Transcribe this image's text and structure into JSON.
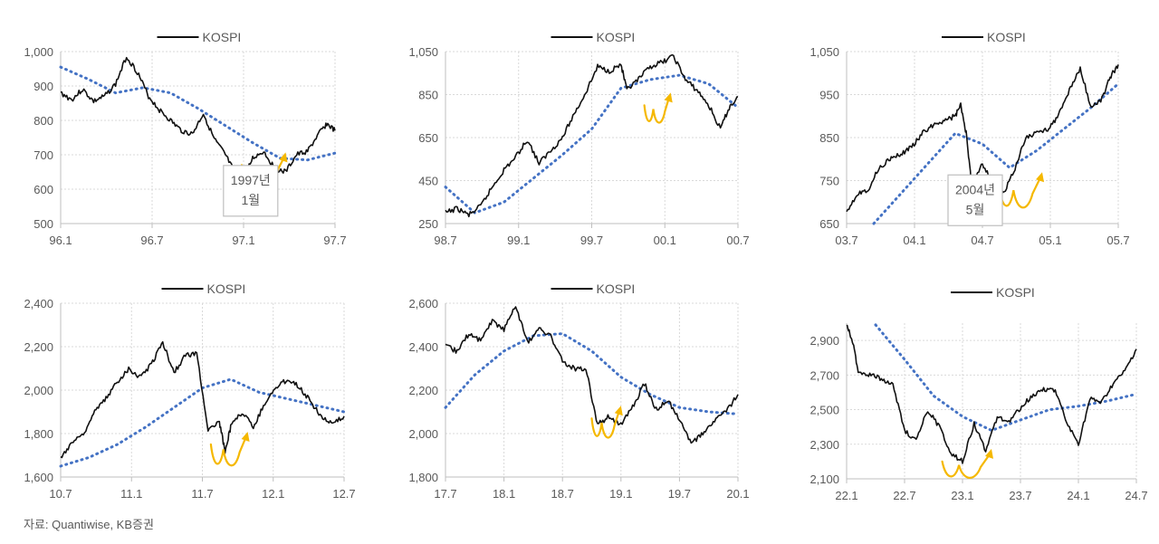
{
  "colors": {
    "price": "#111111",
    "trend": "#4472c4",
    "pattern": "#f5b800",
    "grid": "#d9d9d9",
    "axis": "#bfbfbf",
    "text": "#595959",
    "callout_border": "#bfbfbf"
  },
  "source": "자료: Quantiwise, KB증권",
  "chart_data": [
    {
      "type": "line",
      "legend": "KOSPI",
      "legend_position": "top-center",
      "grid": true,
      "ylim": [
        500,
        1000
      ],
      "yticks": [
        500,
        600,
        700,
        800,
        900,
        1000
      ],
      "ytick_labels": [
        "500",
        "600",
        "700",
        "800",
        "900",
        "1,000"
      ],
      "xticks": [
        "96.1",
        "96.7",
        "97.1",
        "97.7"
      ],
      "series": [
        {
          "name": "KOSPI",
          "style": "solid",
          "x": [
            0,
            0.04,
            0.08,
            0.12,
            0.16,
            0.2,
            0.24,
            0.28,
            0.32,
            0.36,
            0.4,
            0.44,
            0.48,
            0.52,
            0.56,
            0.6,
            0.64,
            0.66,
            0.7,
            0.74,
            0.78,
            0.82,
            0.86,
            0.9,
            0.94,
            0.97,
            1.0
          ],
          "y": [
            880,
            860,
            890,
            855,
            870,
            905,
            985,
            940,
            870,
            830,
            800,
            770,
            760,
            820,
            745,
            700,
            640,
            620,
            690,
            710,
            660,
            650,
            700,
            710,
            760,
            790,
            770
          ]
        },
        {
          "name": "",
          "style": "dotted",
          "x": [
            0,
            0.1,
            0.2,
            0.3,
            0.4,
            0.5,
            0.6,
            0.7,
            0.8,
            0.9,
            1.0
          ],
          "y": [
            955,
            920,
            880,
            895,
            880,
            835,
            785,
            735,
            690,
            685,
            705
          ]
        }
      ],
      "pattern": {
        "x_start": 0.66,
        "x_end": 0.82,
        "y_low": 610,
        "y_high": 670
      },
      "callout": {
        "lines": [
          "1997년",
          "1월"
        ],
        "x": 0.6,
        "y_center": 590
      }
    },
    {
      "type": "line",
      "legend": "KOSPI",
      "legend_position": "top-center",
      "grid": true,
      "ylim": [
        250,
        1050
      ],
      "yticks": [
        250,
        450,
        650,
        850,
        1050
      ],
      "ytick_labels": [
        "250",
        "450",
        "650",
        "850",
        "1,050"
      ],
      "xticks": [
        "98.7",
        "99.1",
        "99.7",
        "00.1",
        "00.7"
      ],
      "series": [
        {
          "name": "KOSPI",
          "style": "solid",
          "x": [
            0,
            0.04,
            0.08,
            0.12,
            0.16,
            0.2,
            0.24,
            0.28,
            0.32,
            0.36,
            0.4,
            0.44,
            0.48,
            0.52,
            0.56,
            0.6,
            0.62,
            0.66,
            0.7,
            0.74,
            0.78,
            0.82,
            0.86,
            0.9,
            0.94,
            0.97,
            1.0
          ],
          "y": [
            300,
            320,
            290,
            330,
            420,
            500,
            560,
            640,
            530,
            590,
            650,
            760,
            860,
            980,
            960,
            990,
            870,
            920,
            980,
            1000,
            1030,
            920,
            870,
            800,
            690,
            790,
            840
          ]
        },
        {
          "name": "",
          "style": "dotted",
          "x": [
            0,
            0.1,
            0.2,
            0.3,
            0.4,
            0.5,
            0.6,
            0.7,
            0.8,
            0.9,
            1.0
          ],
          "y": [
            420,
            300,
            350,
            460,
            570,
            690,
            880,
            920,
            940,
            900,
            790
          ]
        }
      ],
      "pattern": {
        "x_start": 0.68,
        "x_end": 0.77,
        "y_low": 730,
        "y_high": 800
      }
    },
    {
      "type": "line",
      "legend": "KOSPI",
      "legend_position": "top-center",
      "grid": true,
      "ylim": [
        650,
        1050
      ],
      "yticks": [
        650,
        750,
        850,
        950,
        1050
      ],
      "ytick_labels": [
        "650",
        "750",
        "850",
        "950",
        "1,050"
      ],
      "xticks": [
        "03.7",
        "04.1",
        "04.7",
        "05.1",
        "05.7"
      ],
      "series": [
        {
          "name": "KOSPI",
          "style": "solid",
          "x": [
            0,
            0.04,
            0.08,
            0.12,
            0.16,
            0.2,
            0.24,
            0.28,
            0.32,
            0.36,
            0.4,
            0.42,
            0.44,
            0.46,
            0.5,
            0.54,
            0.58,
            0.62,
            0.66,
            0.7,
            0.74,
            0.78,
            0.82,
            0.86,
            0.9,
            0.94,
            0.97,
            1.0
          ],
          "y": [
            680,
            720,
            730,
            780,
            800,
            810,
            830,
            860,
            880,
            890,
            900,
            925,
            860,
            740,
            790,
            740,
            720,
            780,
            850,
            860,
            870,
            900,
            960,
            1010,
            920,
            940,
            990,
            1020
          ]
        },
        {
          "name": "",
          "style": "dotted",
          "x": [
            0.1,
            0.2,
            0.3,
            0.4,
            0.5,
            0.6,
            0.7,
            0.8,
            0.9,
            1.0
          ],
          "y": [
            650,
            720,
            790,
            860,
            835,
            780,
            820,
            870,
            920,
            975
          ]
        }
      ],
      "pattern": {
        "x_start": 0.56,
        "x_end": 0.72,
        "y_low": 690,
        "y_high": 740
      },
      "callout": {
        "lines": [
          "2004년",
          "5월"
        ],
        "x": 0.38,
        "y_center": 700
      }
    },
    {
      "type": "line",
      "legend": "KOSPI",
      "legend_position": "top-center",
      "grid": true,
      "ylim": [
        1600,
        2400
      ],
      "yticks": [
        1600,
        1800,
        2000,
        2200,
        2400
      ],
      "ytick_labels": [
        "1,600",
        "1,800",
        "2,000",
        "2,200",
        "2,400"
      ],
      "xticks": [
        "10.7",
        "11.1",
        "11.7",
        "12.1",
        "12.7"
      ],
      "series": [
        {
          "name": "KOSPI",
          "style": "solid",
          "x": [
            0,
            0.04,
            0.08,
            0.12,
            0.16,
            0.2,
            0.24,
            0.28,
            0.32,
            0.36,
            0.4,
            0.44,
            0.48,
            0.52,
            0.56,
            0.58,
            0.6,
            0.64,
            0.68,
            0.72,
            0.76,
            0.8,
            0.84,
            0.88,
            0.92,
            0.96,
            1.0
          ],
          "y": [
            1690,
            1760,
            1800,
            1900,
            1960,
            2040,
            2100,
            2060,
            2120,
            2220,
            2080,
            2160,
            2170,
            1820,
            1850,
            1720,
            1830,
            1900,
            1830,
            1940,
            2010,
            2050,
            2020,
            1950,
            1880,
            1840,
            1880
          ]
        },
        {
          "name": "",
          "style": "dotted",
          "x": [
            0,
            0.1,
            0.2,
            0.3,
            0.4,
            0.5,
            0.6,
            0.7,
            0.8,
            0.9,
            1.0
          ],
          "y": [
            1650,
            1690,
            1750,
            1830,
            1920,
            2010,
            2050,
            1990,
            1960,
            1930,
            1900
          ]
        }
      ],
      "pattern": {
        "x_start": 0.53,
        "x_end": 0.66,
        "y_low": 1660,
        "y_high": 1750
      }
    },
    {
      "type": "line",
      "legend": "KOSPI",
      "legend_position": "top-center",
      "grid": true,
      "ylim": [
        1800,
        2600
      ],
      "yticks": [
        1800,
        2000,
        2200,
        2400,
        2600
      ],
      "ytick_labels": [
        "1,800",
        "2,000",
        "2,200",
        "2,400",
        "2,600"
      ],
      "xticks": [
        "17.7",
        "18.1",
        "18.7",
        "19.1",
        "19.7",
        "20.1"
      ],
      "series": [
        {
          "name": "KOSPI",
          "style": "solid",
          "x": [
            0,
            0.04,
            0.08,
            0.12,
            0.16,
            0.2,
            0.24,
            0.28,
            0.32,
            0.36,
            0.4,
            0.44,
            0.48,
            0.52,
            0.56,
            0.6,
            0.64,
            0.68,
            0.72,
            0.76,
            0.8,
            0.84,
            0.88,
            0.92,
            0.96,
            1.0
          ],
          "y": [
            2400,
            2380,
            2460,
            2430,
            2520,
            2480,
            2590,
            2420,
            2480,
            2450,
            2330,
            2300,
            2300,
            2040,
            2080,
            2040,
            2120,
            2230,
            2110,
            2150,
            2070,
            1950,
            2000,
            2060,
            2100,
            2180
          ]
        },
        {
          "name": "",
          "style": "dotted",
          "x": [
            0,
            0.1,
            0.2,
            0.3,
            0.4,
            0.5,
            0.6,
            0.7,
            0.8,
            0.9,
            1.0
          ],
          "y": [
            2120,
            2270,
            2380,
            2450,
            2460,
            2380,
            2260,
            2180,
            2120,
            2100,
            2090
          ]
        }
      ],
      "pattern": {
        "x_start": 0.5,
        "x_end": 0.6,
        "y_low": 1990,
        "y_high": 2070
      }
    },
    {
      "type": "line",
      "legend": "KOSPI",
      "legend_position": "top-center",
      "grid": true,
      "ylim": [
        2100,
        3000
      ],
      "yticks": [
        2100,
        2300,
        2500,
        2700,
        2900
      ],
      "ytick_labels": [
        "2,100",
        "2,300",
        "2,500",
        "2,700",
        "2,900"
      ],
      "xticks": [
        "22.1",
        "22.7",
        "23.1",
        "23.7",
        "24.1",
        "24.7"
      ],
      "series": [
        {
          "name": "KOSPI",
          "style": "solid",
          "x": [
            0,
            0.02,
            0.04,
            0.08,
            0.12,
            0.16,
            0.2,
            0.24,
            0.28,
            0.32,
            0.36,
            0.4,
            0.44,
            0.48,
            0.52,
            0.56,
            0.6,
            0.64,
            0.68,
            0.72,
            0.76,
            0.8,
            0.84,
            0.88,
            0.92,
            0.96,
            1.0
          ],
          "y": [
            2990,
            2900,
            2720,
            2700,
            2680,
            2640,
            2380,
            2320,
            2500,
            2400,
            2250,
            2200,
            2420,
            2260,
            2460,
            2430,
            2510,
            2580,
            2620,
            2610,
            2420,
            2300,
            2560,
            2540,
            2650,
            2720,
            2850
          ]
        },
        {
          "name": "",
          "style": "dotted",
          "x": [
            0.1,
            0.2,
            0.3,
            0.4,
            0.5,
            0.6,
            0.7,
            0.8,
            0.9,
            1.0
          ],
          "y": [
            2990,
            2790,
            2580,
            2460,
            2380,
            2440,
            2500,
            2520,
            2550,
            2590
          ]
        }
      ],
      "pattern": {
        "x_start": 0.33,
        "x_end": 0.5,
        "y_low": 2120,
        "y_high": 2200
      }
    }
  ]
}
